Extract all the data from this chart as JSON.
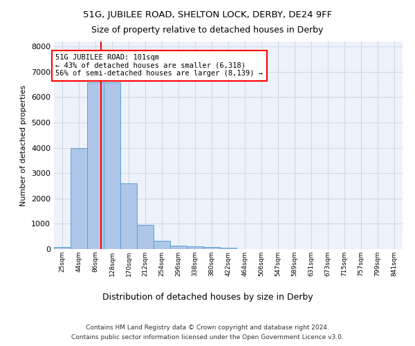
{
  "title_line1": "51G, JUBILEE ROAD, SHELTON LOCK, DERBY, DE24 9FF",
  "title_line2": "Size of property relative to detached houses in Derby",
  "xlabel": "Distribution of detached houses by size in Derby",
  "ylabel": "Number of detached properties",
  "footer_line1": "Contains HM Land Registry data © Crown copyright and database right 2024.",
  "footer_line2": "Contains public sector information licensed under the Open Government Licence v3.0.",
  "bin_labels": [
    "25sqm",
    "44sqm",
    "86sqm",
    "128sqm",
    "170sqm",
    "212sqm",
    "254sqm",
    "296sqm",
    "338sqm",
    "380sqm",
    "422sqm",
    "464sqm",
    "506sqm",
    "547sqm",
    "589sqm",
    "631sqm",
    "673sqm",
    "715sqm",
    "757sqm",
    "799sqm",
    "841sqm"
  ],
  "bar_values": [
    70,
    4000,
    6600,
    6600,
    2600,
    950,
    320,
    150,
    110,
    75,
    60,
    0,
    0,
    0,
    0,
    0,
    0,
    0,
    0,
    0,
    0
  ],
  "bar_color": "#aec6e8",
  "bar_edge_color": "#5a9fd4",
  "grid_color": "#d0d8e8",
  "background_color": "#eef2fa",
  "ylim": [
    0,
    8200
  ],
  "yticks": [
    0,
    1000,
    2000,
    3000,
    4000,
    5000,
    6000,
    7000,
    8000
  ],
  "property_label": "51G JUBILEE ROAD: 101sqm",
  "annotation_line1": "← 43% of detached houses are smaller (6,318)",
  "annotation_line2": "56% of semi-detached houses are larger (8,139) →",
  "vline_x": 2.35
}
